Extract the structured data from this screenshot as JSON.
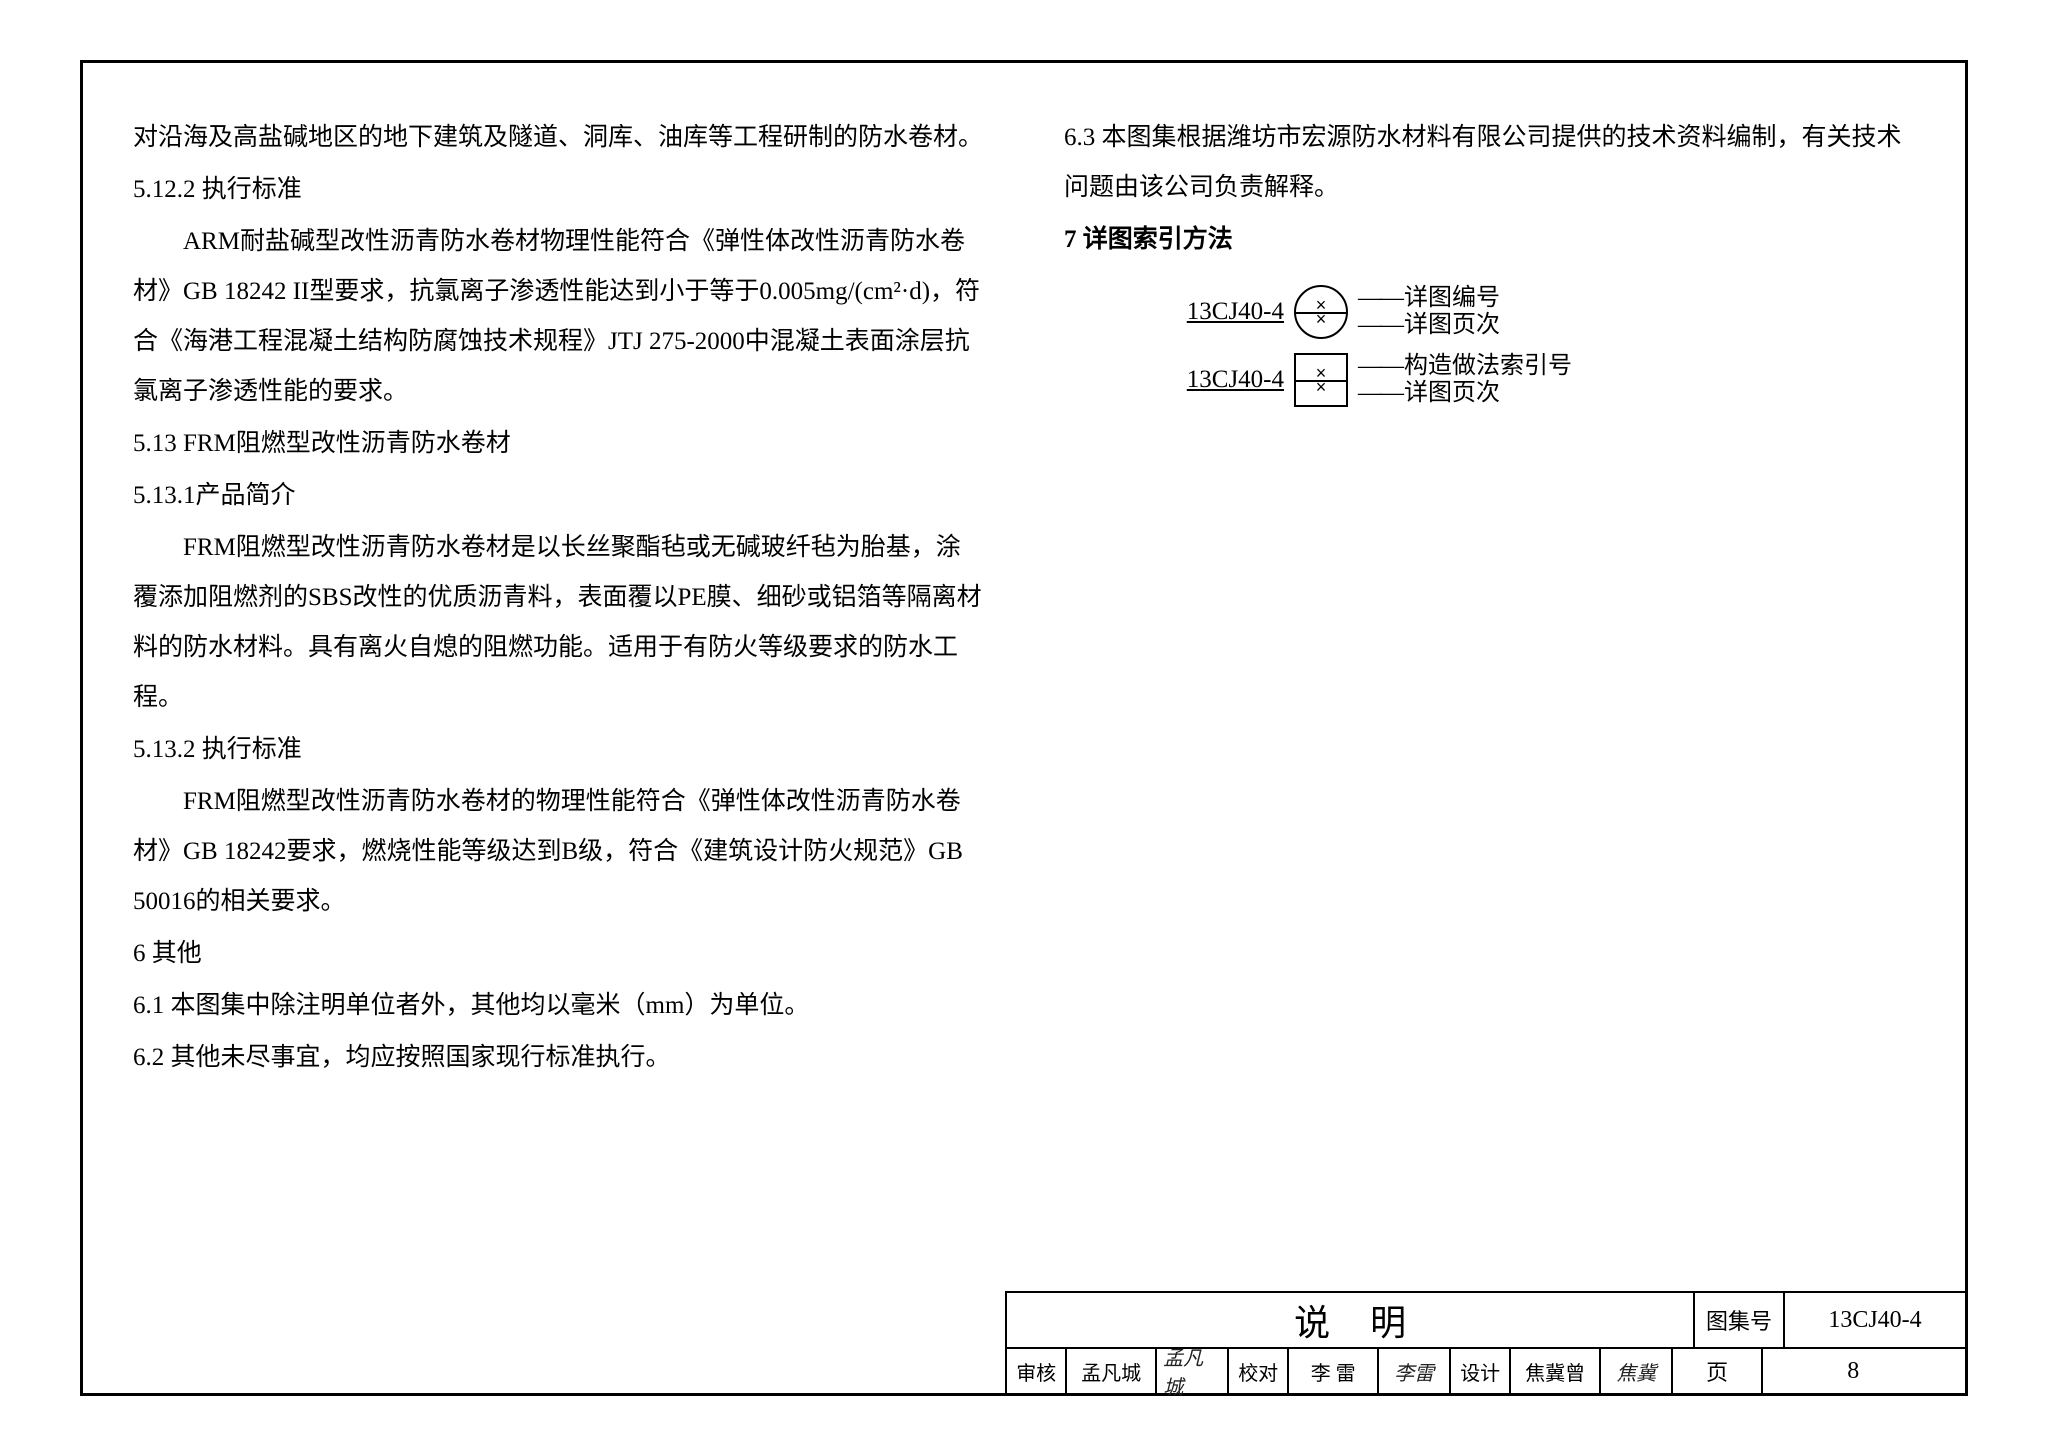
{
  "left_column": {
    "p1": "对沿海及高盐碱地区的地下建筑及隧道、洞库、油库等工程研制的防水卷材。",
    "h1": "5.12.2 执行标准",
    "p2": "ARM耐盐碱型改性沥青防水卷材物理性能符合《弹性体改性沥青防水卷材》GB 18242 II型要求，抗氯离子渗透性能达到小于等于0.005mg/(cm²·d)，符合《海港工程混凝土结构防腐蚀技术规程》JTJ 275-2000中混凝土表面涂层抗氯离子渗透性能的要求。",
    "h2": "5.13 FRM阻燃型改性沥青防水卷材",
    "h3": "5.13.1产品简介",
    "p3": "FRM阻燃型改性沥青防水卷材是以长丝聚酯毡或无碱玻纤毡为胎基，涂覆添加阻燃剂的SBS改性的优质沥青料，表面覆以PE膜、细砂或铝箔等隔离材料的防水材料。具有离火自熄的阻燃功能。适用于有防火等级要求的防水工程。",
    "h4": "5.13.2 执行标准",
    "p4": "FRM阻燃型改性沥青防水卷材的物理性能符合《弹性体改性沥青防水卷材》GB 18242要求，燃烧性能等级达到B级，符合《建筑设计防火规范》GB 50016的相关要求。",
    "h5": "6  其他",
    "p5": "6.1 本图集中除注明单位者外，其他均以毫米（mm）为单位。",
    "p6": "6.2 其他未尽事宜，均应按照国家现行标准执行。"
  },
  "right_column": {
    "p1": "6.3 本图集根据潍坊市宏源防水材料有限公司提供的技术资料编制，有关技术问题由该公司负责解释。",
    "h1": "7 详图索引方法",
    "diag1_code": "13CJ40-4",
    "diag1_a": "详图编号",
    "diag1_b": "详图页次",
    "diag2_code": "13CJ40-4",
    "diag2_a": "构造做法索引号",
    "diag2_b": "详图页次"
  },
  "title_block": {
    "title": "说明",
    "atlas_label": "图集号",
    "atlas_value": "13CJ40-4",
    "review_label": "审核",
    "review_name": "孟凡城",
    "review_sig": "孟凡城",
    "check_label": "校对",
    "check_name": "李  雷",
    "check_sig": "李雷",
    "design_label": "设计",
    "design_name": "焦冀曾",
    "design_sig": "焦冀",
    "page_label": "页",
    "page_value": "8"
  }
}
